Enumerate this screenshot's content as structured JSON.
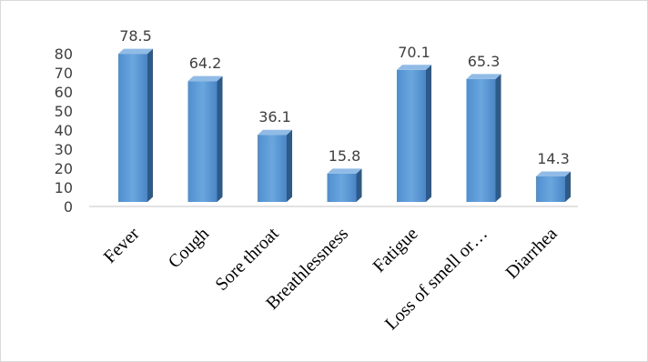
{
  "chart_data": {
    "type": "bar",
    "style": "3d-column",
    "categories": [
      "Fever",
      "Cough",
      "Sore throat",
      "Breathlessness",
      "Fatigue",
      "Loss of smell or…",
      "Diarrhea"
    ],
    "values": [
      78.5,
      64.2,
      36.1,
      15.8,
      70.1,
      65.3,
      14.3
    ],
    "data_labels": [
      "78.5",
      "64.2",
      "36.1",
      "15.8",
      "70.1",
      "65.3",
      "14.3"
    ],
    "y_ticks": [
      "0",
      "10",
      "20",
      "30",
      "40",
      "50",
      "60",
      "70",
      "80"
    ],
    "ylim": [
      0,
      80
    ],
    "title": "",
    "xlabel": "",
    "ylabel": "",
    "grid": false,
    "legend": "none",
    "colors": {
      "bar_front": "#5b9bd5",
      "bar_side": "#2e5a8a",
      "bar_top": "#8fbbe6",
      "axis": "#d9d9d9",
      "text": "#404040"
    }
  }
}
